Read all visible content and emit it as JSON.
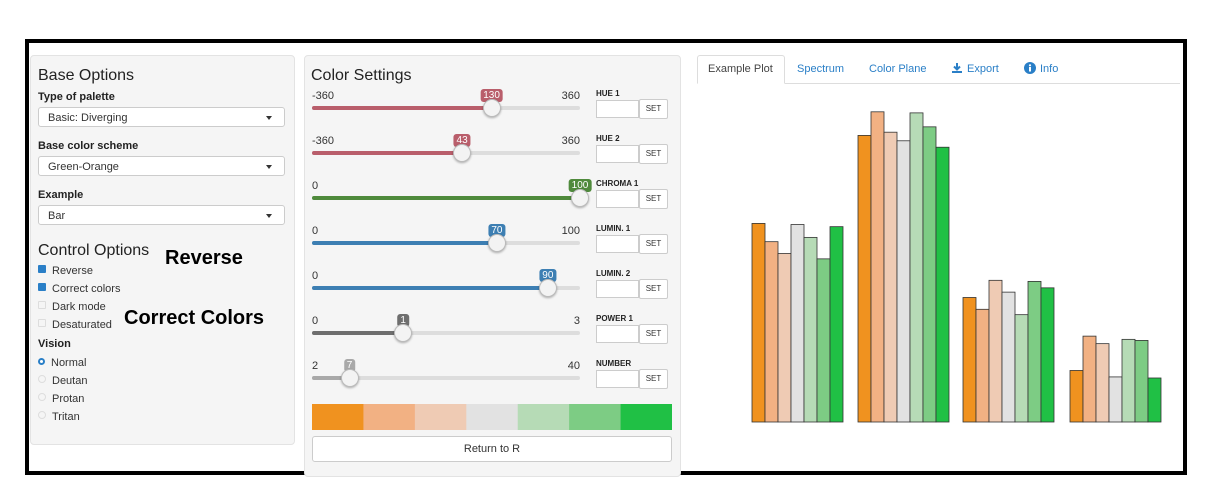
{
  "base_options": {
    "title": "Base Options",
    "palette_label": "Type of palette",
    "palette_value": "Basic: Diverging",
    "scheme_label": "Base color scheme",
    "scheme_value": "Green-Orange",
    "example_label": "Example",
    "example_value": "Bar"
  },
  "control_options": {
    "title": "Control Options",
    "checkboxes": [
      {
        "label": "Reverse",
        "checked": true
      },
      {
        "label": "Correct colors",
        "checked": true
      },
      {
        "label": "Dark mode",
        "checked": false
      },
      {
        "label": "Desaturated",
        "checked": false
      }
    ],
    "vision_label": "Vision",
    "vision": [
      {
        "label": "Normal",
        "selected": true
      },
      {
        "label": "Deutan",
        "selected": false
      },
      {
        "label": "Protan",
        "selected": false
      },
      {
        "label": "Tritan",
        "selected": false
      }
    ]
  },
  "annotations": [
    "Reverse",
    "Correct Colors"
  ],
  "color_settings": {
    "title": "Color Settings",
    "sliders": [
      {
        "label": "HUE 1",
        "min": -360,
        "value": 130,
        "max": 360,
        "color": "#b95e6b"
      },
      {
        "label": "HUE 2",
        "min": -360,
        "value": 43,
        "max": 360,
        "color": "#b95e6b"
      },
      {
        "label": "CHROMA 1",
        "min": 0,
        "value": 100,
        "color": "#4f8a3c"
      },
      {
        "label": "LUMIN. 1",
        "min": 0,
        "value": 70,
        "max": 100,
        "color": "#3d7fb3"
      },
      {
        "label": "LUMIN. 2",
        "min": 0,
        "value": 90,
        "color": "#3d7fb3"
      },
      {
        "label": "POWER 1",
        "min": 0,
        "value": 1,
        "max": 3,
        "color": "#6e6e6e"
      },
      {
        "label": "NUMBER",
        "min": 2,
        "value": 7,
        "max": 40,
        "color": "#a9a9a9"
      }
    ],
    "set_button": "SET",
    "return_button": "Return to R"
  },
  "tabs": [
    "Example Plot",
    "Spectrum",
    "Color Plane",
    "Export",
    "Info"
  ],
  "example_plot": {
    "type": "bar",
    "ylim": [
      0,
      300
    ],
    "colors": [
      "#f0921f",
      "#f2b183",
      "#efcbb4",
      "#e2e2e2",
      "#b6dbb6",
      "#7dcc84",
      "#20c045"
    ],
    "values": [
      [
        185,
        168,
        157,
        184,
        172,
        152,
        182
      ],
      [
        267,
        289,
        270,
        262,
        288,
        275,
        256
      ],
      [
        116,
        105,
        132,
        121,
        100,
        131,
        125
      ],
      [
        48,
        80,
        73,
        42,
        77,
        76,
        41
      ]
    ]
  }
}
